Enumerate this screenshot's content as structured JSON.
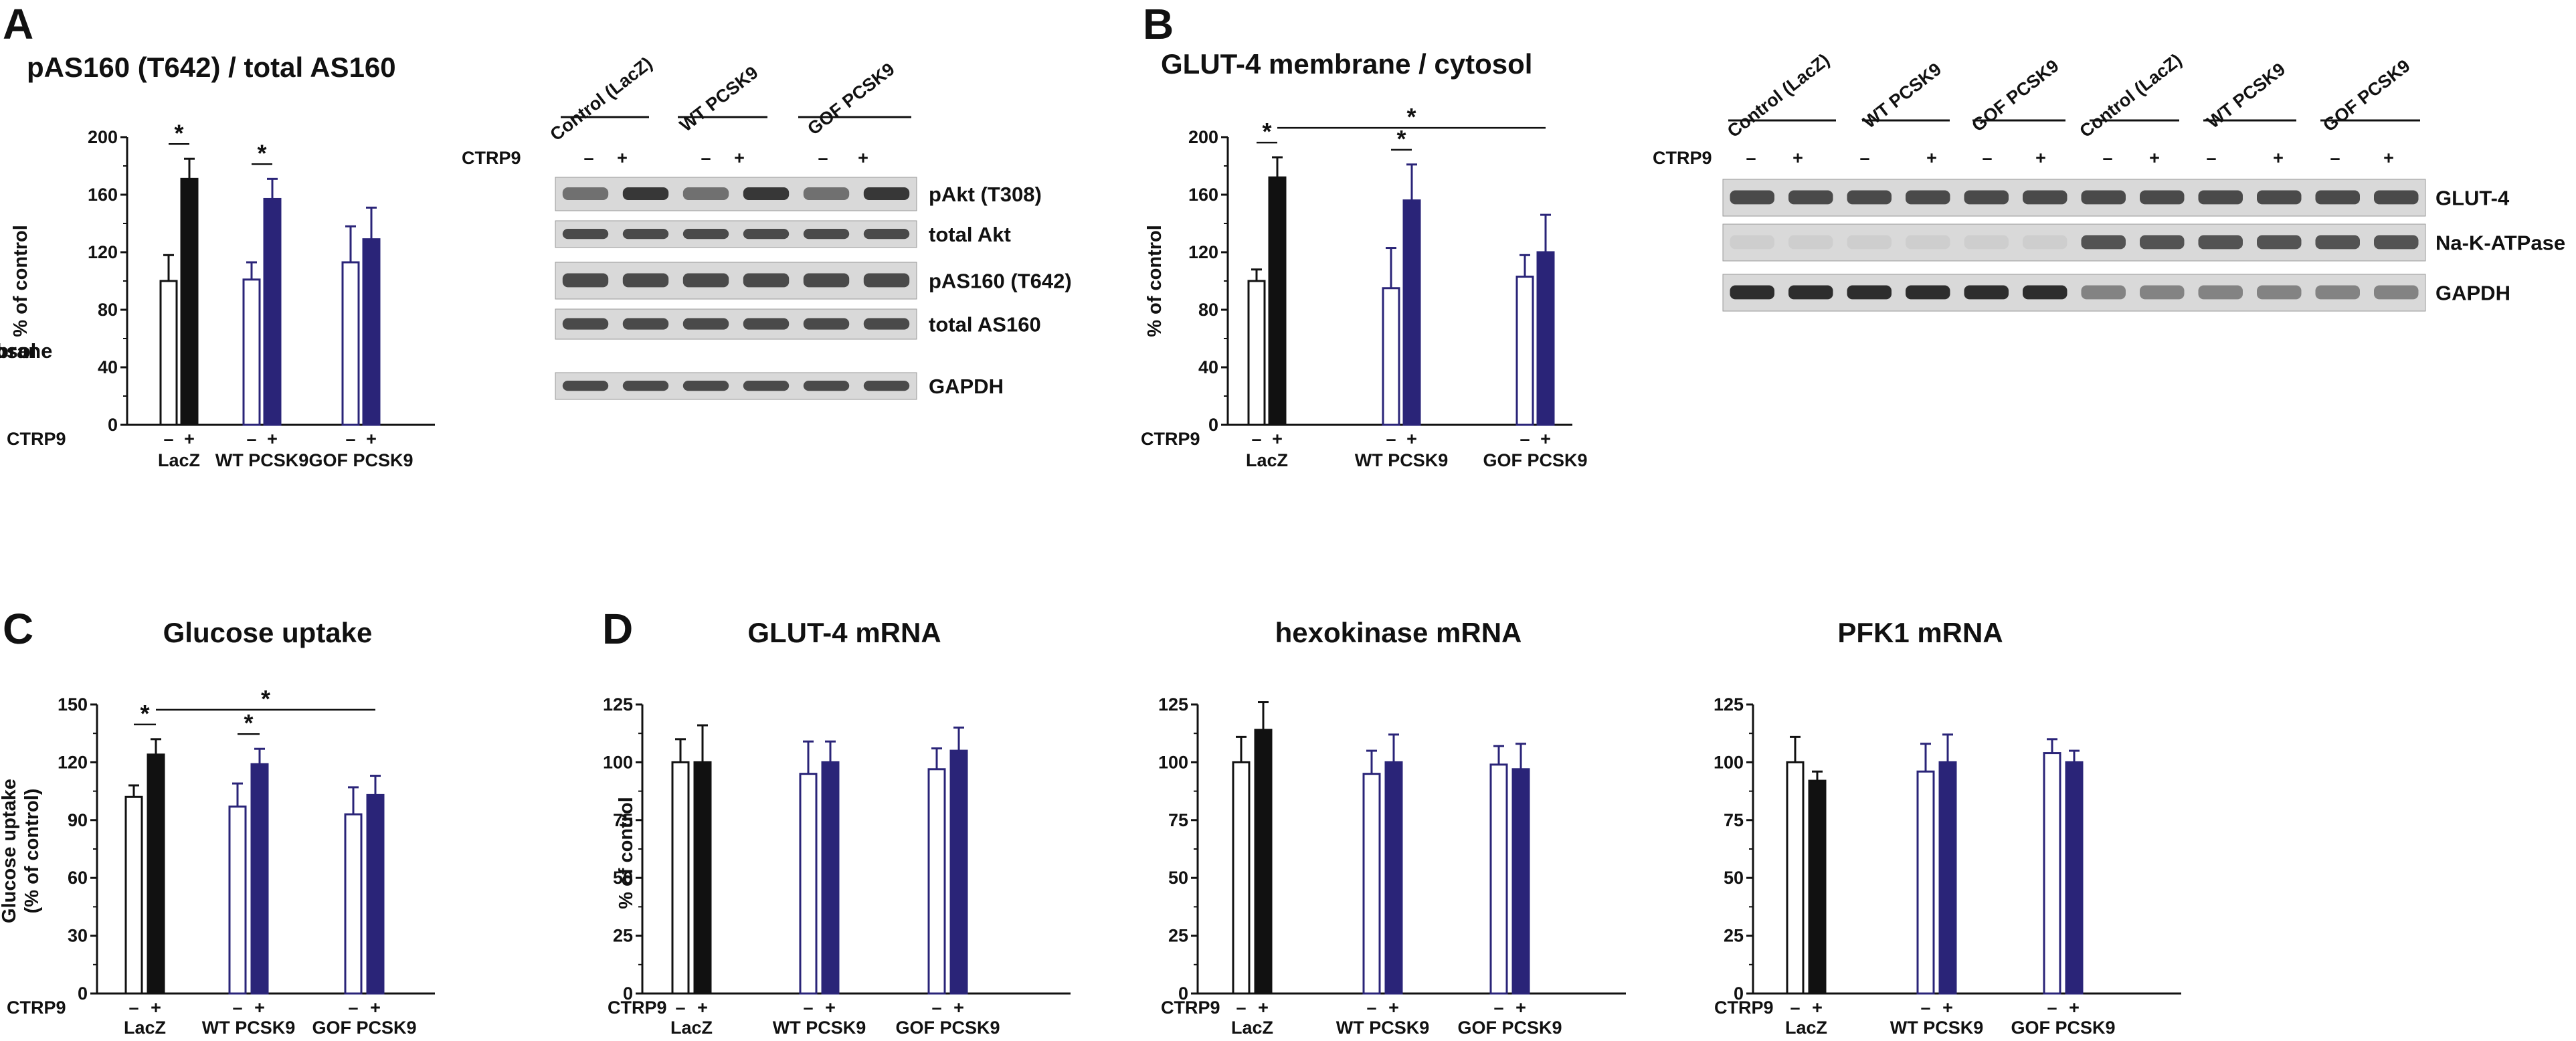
{
  "panel_labels": [
    "A",
    "B",
    "C",
    "D"
  ],
  "colors": {
    "lacz_bar": "#111111",
    "pcsk9_bar": "#2a2478",
    "pcsk9_label": "#2a2478",
    "axis": "#111111",
    "blot_background": "#d9d9d9"
  },
  "chart_data": [
    {
      "type": "bar",
      "panel": "A",
      "title": "pAS160 (T642) / total AS160",
      "ylabel": "% of control",
      "ylim": [
        0,
        200
      ],
      "yticks": [
        0,
        40,
        80,
        120,
        160,
        200
      ],
      "row_label": "CTRP9",
      "treatment_labels": [
        "–",
        "+"
      ],
      "groups": [
        "LacZ",
        "WT PCSK9",
        "GOF PCSK9"
      ],
      "series": [
        {
          "values": [
            100,
            101,
            113
          ],
          "errors": [
            18,
            12,
            25
          ]
        },
        {
          "values": [
            171,
            157,
            129
          ],
          "errors": [
            14,
            14,
            22
          ]
        }
      ],
      "significance": [
        {
          "from": 0,
          "to": 1,
          "label": "*"
        },
        {
          "from": 2,
          "to": 3,
          "label": "*"
        }
      ]
    },
    {
      "type": "bar",
      "panel": "B",
      "title": "GLUT-4 membrane / cytosol",
      "ylabel": "% of control",
      "ylim": [
        0,
        200
      ],
      "yticks": [
        0,
        40,
        80,
        120,
        160,
        200
      ],
      "row_label": "CTRP9",
      "treatment_labels": [
        "–",
        "+"
      ],
      "groups": [
        "LacZ",
        "WT PCSK9",
        "GOF PCSK9"
      ],
      "series": [
        {
          "values": [
            100,
            95,
            103
          ],
          "errors": [
            8,
            28,
            15
          ]
        },
        {
          "values": [
            172,
            156,
            120
          ],
          "errors": [
            14,
            25,
            26
          ]
        }
      ],
      "significance": [
        {
          "from": 0,
          "to": 1,
          "label": "*"
        },
        {
          "from": 2,
          "to": 3,
          "label": "*"
        },
        {
          "from": 1,
          "to": 5,
          "label": "*"
        }
      ]
    },
    {
      "type": "bar",
      "panel": "C",
      "title": "Glucose uptake",
      "ylabel": "Glucose uptake\n(% of control)",
      "ylim": [
        0,
        150
      ],
      "yticks": [
        0,
        30,
        60,
        90,
        120,
        150
      ],
      "row_label": "CTRP9",
      "treatment_labels": [
        "–",
        "+"
      ],
      "groups": [
        "LacZ",
        "WT PCSK9",
        "GOF PCSK9"
      ],
      "series": [
        {
          "values": [
            102,
            97,
            93
          ],
          "errors": [
            6,
            12,
            14
          ]
        },
        {
          "values": [
            124,
            119,
            103
          ],
          "errors": [
            8,
            8,
            10
          ]
        }
      ],
      "significance": [
        {
          "from": 0,
          "to": 1,
          "label": "*"
        },
        {
          "from": 2,
          "to": 3,
          "label": "*"
        },
        {
          "from": 1,
          "to": 5,
          "label": "*"
        }
      ]
    },
    {
      "type": "bar",
      "panel": "D",
      "title": "GLUT-4 mRNA",
      "ylabel": "% of control",
      "ylim": [
        0,
        125
      ],
      "yticks": [
        0,
        25,
        50,
        75,
        100,
        125
      ],
      "row_label": "CTRP9",
      "treatment_labels": [
        "–",
        "+"
      ],
      "groups": [
        "LacZ",
        "WT PCSK9",
        "GOF PCSK9"
      ],
      "series": [
        {
          "values": [
            100,
            95,
            97
          ],
          "errors": [
            10,
            14,
            9
          ]
        },
        {
          "values": [
            100,
            100,
            105
          ],
          "errors": [
            16,
            9,
            10
          ]
        }
      ],
      "significance": []
    },
    {
      "type": "bar",
      "panel": "D",
      "title": "hexokinase mRNA",
      "ylabel": "",
      "ylim": [
        0,
        125
      ],
      "yticks": [
        0,
        25,
        50,
        75,
        100,
        125
      ],
      "row_label": "CTRP9",
      "treatment_labels": [
        "–",
        "+"
      ],
      "groups": [
        "LacZ",
        "WT PCSK9",
        "GOF PCSK9"
      ],
      "series": [
        {
          "values": [
            100,
            95,
            99
          ],
          "errors": [
            11,
            10,
            8
          ]
        },
        {
          "values": [
            114,
            100,
            97
          ],
          "errors": [
            12,
            12,
            11
          ]
        }
      ],
      "significance": []
    },
    {
      "type": "bar",
      "panel": "D",
      "title": "PFK1 mRNA",
      "ylabel": "",
      "ylim": [
        0,
        125
      ],
      "yticks": [
        0,
        25,
        50,
        75,
        100,
        125
      ],
      "row_label": "CTRP9",
      "treatment_labels": [
        "–",
        "+"
      ],
      "groups": [
        "LacZ",
        "WT PCSK9",
        "GOF PCSK9"
      ],
      "series": [
        {
          "values": [
            100,
            96,
            104
          ],
          "errors": [
            11,
            12,
            6
          ]
        },
        {
          "values": [
            92,
            100,
            100
          ],
          "errors": [
            4,
            12,
            5
          ]
        }
      ],
      "significance": []
    }
  ],
  "blots": [
    {
      "panel": "A",
      "lane_groups": [
        "Control (LacZ)",
        "WT PCSK9",
        "GOF PCSK9"
      ],
      "row_label": "CTRP9",
      "treatment_labels": [
        "–",
        "+"
      ],
      "bands": [
        "pAkt (T308)",
        "total Akt",
        "pAS160 (T642)",
        "total AS160",
        "GAPDH"
      ]
    },
    {
      "panel": "B",
      "lane_groups": [
        "Control (LacZ)",
        "WT PCSK9",
        "GOF PCSK9",
        "Control (LacZ)",
        "WT PCSK9",
        "GOF PCSK9"
      ],
      "row_label": "CTRP9",
      "treatment_labels": [
        "–",
        "+"
      ],
      "bands": [
        "GLUT-4",
        "Na-K-ATPase",
        "GAPDH"
      ],
      "sections": [
        "cytosol",
        "membrane"
      ]
    }
  ]
}
